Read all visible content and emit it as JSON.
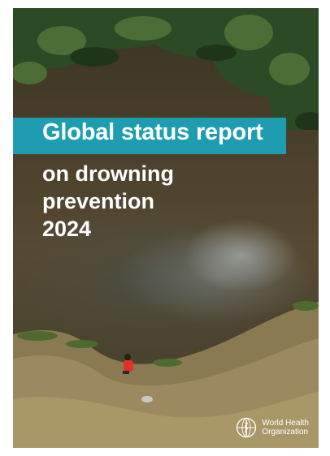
{
  "cover": {
    "title_line1": "Global status report",
    "title_line2": "on drowning",
    "title_line3": "prevention",
    "title_line4": "2024"
  },
  "publisher": {
    "name_line1": "World Health",
    "name_line2": "Organization",
    "emblem_icon": "who-emblem-icon"
  },
  "colors": {
    "title_band": "#1f9db0",
    "title_text": "#ffffff"
  }
}
